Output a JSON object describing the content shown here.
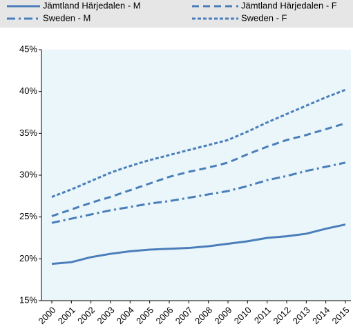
{
  "chart_data": {
    "type": "line",
    "categories": [
      "2000",
      "2001",
      "2002",
      "2003",
      "2004",
      "2005",
      "2006",
      "2007",
      "2008",
      "2009",
      "2010",
      "2011",
      "2012",
      "2013",
      "2014",
      "2015"
    ],
    "series": [
      {
        "name": "Jämtland Härjedalen - M",
        "color": "#4a7ebb",
        "dash": "solid",
        "values": [
          19.4,
          19.6,
          20.2,
          20.6,
          20.9,
          21.1,
          21.2,
          21.3,
          21.5,
          21.8,
          22.1,
          22.5,
          22.7,
          23.0,
          23.6,
          24.1
        ]
      },
      {
        "name": "Jämtland Härjedalen - F",
        "color": "#4a7ebb",
        "dash": "dash",
        "values": [
          25.1,
          25.9,
          26.7,
          27.4,
          28.2,
          29.0,
          29.8,
          30.4,
          30.9,
          31.5,
          32.5,
          33.4,
          34.2,
          34.8,
          35.5,
          36.2
        ]
      },
      {
        "name": "Sweden - M",
        "color": "#4a7ebb",
        "dash": "dashdot",
        "values": [
          24.3,
          24.8,
          25.3,
          25.8,
          26.2,
          26.6,
          26.9,
          27.3,
          27.7,
          28.1,
          28.7,
          29.4,
          29.9,
          30.5,
          31.0,
          31.5
        ]
      },
      {
        "name": "Sweden - F",
        "color": "#4a7ebb",
        "dash": "dot",
        "values": [
          27.4,
          28.3,
          29.3,
          30.3,
          31.1,
          31.8,
          32.4,
          33.0,
          33.6,
          34.2,
          35.2,
          36.3,
          37.3,
          38.3,
          39.3,
          40.2
        ]
      }
    ],
    "ylim": [
      15,
      45
    ],
    "yticks": [
      {
        "value": 15,
        "label": "15%"
      },
      {
        "value": 20,
        "label": "20%"
      },
      {
        "value": 25,
        "label": "25%"
      },
      {
        "value": 30,
        "label": "30%"
      },
      {
        "value": 35,
        "label": "35%"
      },
      {
        "value": 40,
        "label": "40%"
      },
      {
        "value": 45,
        "label": "45%"
      }
    ],
    "plot_background": "#eaf6f9",
    "legend": "top"
  }
}
